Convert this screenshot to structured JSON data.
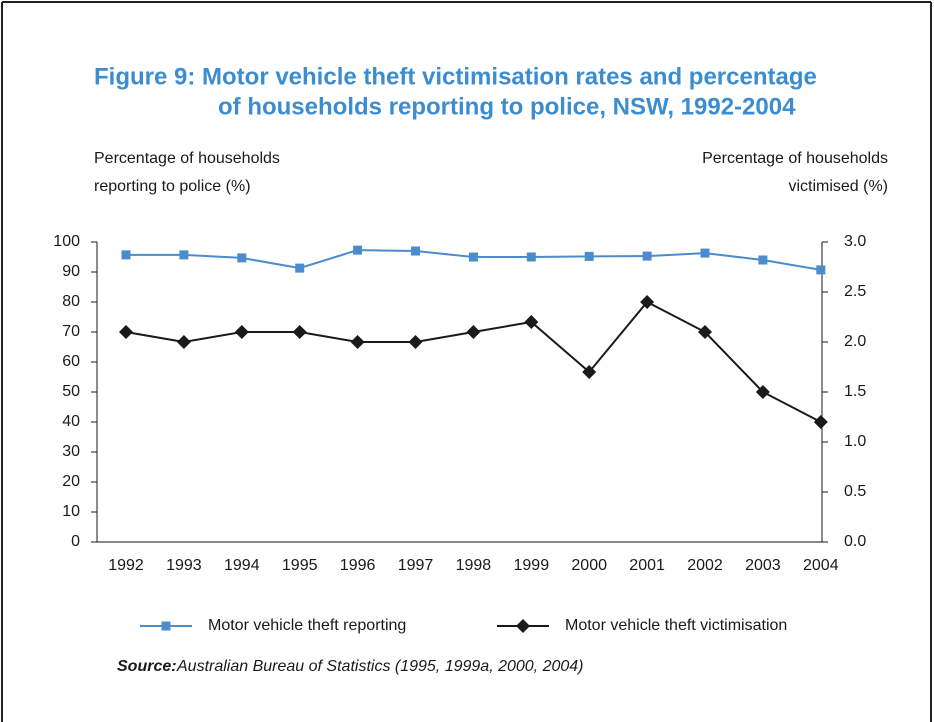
{
  "chart_data": {
    "type": "line",
    "title": [
      "Figure 9: Motor vehicle theft victimisation rates and percentage",
      "of households reporting to police, NSW, 1992-2004"
    ],
    "y_label": [
      "Percentage of households",
      "reporting to police (%)"
    ],
    "y2_label": [
      "Percentage of households",
      "victimised (%)"
    ],
    "categories": [
      "1992",
      "1993",
      "1994",
      "1995",
      "1996",
      "1997",
      "1998",
      "1999",
      "2000",
      "2001",
      "2002",
      "2003",
      "2004"
    ],
    "series": [
      {
        "name": "Motor vehicle theft reporting",
        "color": "#4a8ccc",
        "marker": "square",
        "values": [
          95.7,
          95.7,
          94.7,
          91.3,
          97.3,
          97.0,
          95.0,
          95.0,
          95.2,
          95.3,
          96.3,
          94.0,
          90.7
        ]
      },
      {
        "name": "Motor vehicle theft victimisation",
        "color": "#1a1a1a",
        "marker": "diamond",
        "axis": "y2",
        "values": [
          2.1,
          2.0,
          2.1,
          2.1,
          2.0,
          2.0,
          2.1,
          2.2,
          1.7,
          2.4,
          2.1,
          1.5,
          1.2
        ]
      }
    ],
    "ylim": [
      0,
      100
    ],
    "yticks": [
      0,
      10,
      20,
      30,
      40,
      50,
      60,
      70,
      80,
      90,
      100
    ],
    "y2lim": [
      0,
      3
    ],
    "y2ticks": [
      {
        "value": 0,
        "label": "0.0"
      },
      0.5,
      {
        "value": 1,
        "label": "1.0"
      },
      1.5,
      {
        "value": 2,
        "label": "2.0"
      },
      2.5,
      {
        "value": 3,
        "label": "3.0"
      }
    ],
    "grid": false,
    "source_label": "Source:",
    "source_text": "Australian Bureau of Statistics (1995, 1999a, 2000, 2004)"
  }
}
